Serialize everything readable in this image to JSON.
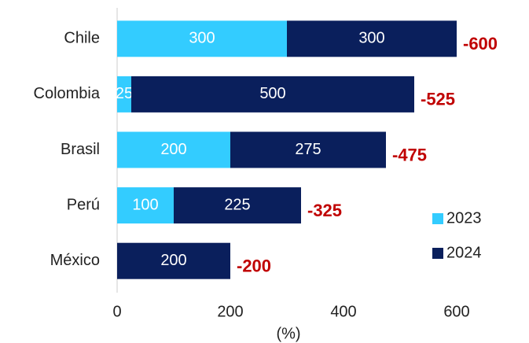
{
  "chart_data": {
    "type": "bar",
    "orientation": "horizontal",
    "stacked": true,
    "categories": [
      "Chile",
      "Colombia",
      "Brasil",
      "Perú",
      "México"
    ],
    "series": [
      {
        "name": "2023",
        "color": "#33ccff",
        "values": [
          300,
          25,
          200,
          100,
          null
        ]
      },
      {
        "name": "2024",
        "color": "#0a1f5c",
        "values": [
          300,
          500,
          275,
          225,
          200
        ]
      }
    ],
    "annotations": [
      -600,
      -525,
      -475,
      -325,
      -200
    ],
    "xlim": [
      0,
      600
    ],
    "xticks": [
      0,
      200,
      400,
      600
    ],
    "xlabel": "(%)",
    "legend": "lower right"
  }
}
